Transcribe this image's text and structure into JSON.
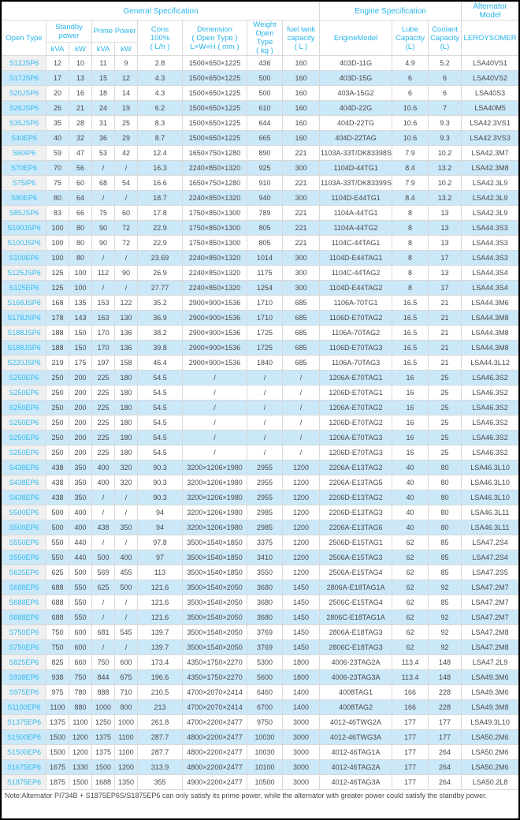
{
  "colors": {
    "accent_header": "#29b4ea",
    "model_link": "#2fb9ef",
    "row_stripe": "#cbe8f9",
    "first_column_bg": "#f0f0f0",
    "grid_border": "#d9d9d9",
    "body_text": "#4a4a4a"
  },
  "table": {
    "header_groups": {
      "general": "General Specification",
      "engine": "Engine Specification",
      "alternator": "Alternator Model"
    },
    "columns_header": {
      "open_type": "Open Type",
      "standby_power": "Standby\npower",
      "prime_power": "Prime Power",
      "kva": "kVA",
      "kw": "kW",
      "cons": "Cons\n100%\n( L/h )",
      "dimension": "Dimension\n( Open Type )\nL×W×H ( mm )",
      "weight": "Weight\nOpen Type\n( kg )",
      "fuel_tank": "fuel tank\ncapacity\n( L )",
      "engine_model": "EngineModel",
      "lube_capacity": "Lube\nCapacity\n(L)",
      "coolant_capacity": "Coolant\nCapacity\n(L)",
      "leroysomer": "LEROYSOMER"
    },
    "column_keys": [
      "model",
      "standby-kva",
      "standby-kw",
      "prime-kva",
      "prime-kw",
      "cons",
      "dimension",
      "weight",
      "fuel-tank",
      "engine-model",
      "lube-capacity",
      "coolant-capacity",
      "alternator"
    ],
    "rows": [
      [
        "S12JSP6",
        "12",
        "10",
        "11",
        "9",
        "2.8",
        "1500×650×1225",
        "436",
        "160",
        "403D-11G",
        "4.9",
        "5.2",
        "LSA40VS1"
      ],
      [
        "S17JSP6",
        "17",
        "13",
        "15",
        "12",
        "4.3",
        "1500×650×1225",
        "500",
        "160",
        "403D-15G",
        "6",
        "6",
        "LSA40VS2"
      ],
      [
        "S20JSP6",
        "20",
        "16",
        "18",
        "14",
        "4.3",
        "1500×650×1225",
        "500",
        "160",
        "403A-15G2",
        "6",
        "6",
        "LSA40S3"
      ],
      [
        "S26JSP6",
        "26",
        "21",
        "24",
        "19",
        "6.2",
        "1500×650×1225",
        "610",
        "160",
        "404D-22G",
        "10.6",
        "7",
        "LSA40M5"
      ],
      [
        "S35JSP6",
        "35",
        "28",
        "31",
        "25",
        "8.3",
        "1500×650×1225",
        "644",
        "160",
        "404D-22TG",
        "10.6",
        "9.3",
        "LSA42.3VS1"
      ],
      [
        "S40EP6",
        "40",
        "32",
        "36",
        "29",
        "8.7",
        "1500×650×1225",
        "665",
        "160",
        "404D-22TAG",
        "10.6",
        "9.3",
        "LSA42.3VS3"
      ],
      [
        "S60IP6",
        "59",
        "47",
        "53",
        "42",
        "12.4",
        "1650×750×1280",
        "890",
        "221",
        "1103A-33T/DK83398S",
        "7.9",
        "10.2",
        "LSA42.3M7"
      ],
      [
        "S70EP6",
        "70",
        "56",
        "/",
        "/",
        "16.3",
        "2240×850×1320",
        "925",
        "300",
        "1104D-44TG1",
        "8.4",
        "13.2",
        "LSA42.3M8"
      ],
      [
        "S75IP6",
        "75",
        "60",
        "68",
        "54",
        "16.6",
        "1650×750×1280",
        "910",
        "221",
        "1103A-33T/DK83399S",
        "7.9",
        "10.2",
        "LSA42.3L9"
      ],
      [
        "S80EP6",
        "80",
        "64",
        "/",
        "/",
        "18.7",
        "2240×850×1320",
        "940",
        "300",
        "1104D-E44TG1",
        "8.4",
        "13.2",
        "LSA42.3L9"
      ],
      [
        "S85JSP6",
        "83",
        "66",
        "75",
        "60",
        "17.8",
        "1750×850×1300",
        "789",
        "221",
        "1104A-44TG1",
        "8",
        "13",
        "LSA42.3L9"
      ],
      [
        "S100JSP6",
        "100",
        "80",
        "90",
        "72",
        "22.9",
        "1750×850×1300",
        "805",
        "221",
        "1104A-44TG2",
        "8",
        "13",
        "LSA44.3S3"
      ],
      [
        "S100JSP6",
        "100",
        "80",
        "90",
        "72",
        "22.9",
        "1750×850×1300",
        "805",
        "221",
        "1104C-44TAG1",
        "8",
        "13",
        "LSA44.3S3"
      ],
      [
        "S100EP6",
        "100",
        "80",
        "/",
        "/",
        "23.69",
        "2240×850×1320",
        "1014",
        "300",
        "1104D-E44TAG1",
        "8",
        "17",
        "LSA44.3S3"
      ],
      [
        "S125JSP6",
        "125",
        "100",
        "112",
        "90",
        "26.9",
        "2240×850×1320",
        "1175",
        "300",
        "1104C-44TAG2",
        "8",
        "13",
        "LSA44.3S4"
      ],
      [
        "S125EP6",
        "125",
        "100",
        "/",
        "/",
        "27.77",
        "2240×850×1320",
        "1254",
        "300",
        "1104D-E44TAG2",
        "8",
        "17",
        "LSA44.3S4"
      ],
      [
        "S168JSP6",
        "168",
        "135",
        "153",
        "122",
        "35.2",
        "2900×900×1536",
        "1710",
        "685",
        "1106A-70TG1",
        "16.5",
        "21",
        "LSA44.3M6"
      ],
      [
        "S178JSP6",
        "178",
        "143",
        "163",
        "130",
        "36.9",
        "2900×900×1536",
        "1710",
        "685",
        "1106D-E70TAG2",
        "16.5",
        "21",
        "LSA44.3M8"
      ],
      [
        "S188JSP6",
        "188",
        "150",
        "170",
        "136",
        "38.2",
        "2900×900×1536",
        "1725",
        "685",
        "1106A-70TAG2",
        "16.5",
        "21",
        "LSA44.3M8"
      ],
      [
        "S188JSP6",
        "188",
        "150",
        "170",
        "136",
        "39.8",
        "2900×900×1536",
        "1725",
        "685",
        "1106D-E70TAG3",
        "16.5",
        "21",
        "LSA44.3M8"
      ],
      [
        "S220JSP6",
        "219",
        "175",
        "197",
        "158",
        "46.4",
        "2900×900×1536",
        "1840",
        "685",
        "1106A-70TAG3",
        "16.5",
        "21",
        "LSA44.3L12"
      ],
      [
        "S250EP6",
        "250",
        "200",
        "225",
        "180",
        "54.5",
        "/",
        "/",
        "/",
        "1206A-E70TAG1",
        "16",
        "25",
        "LSA46.3S2"
      ],
      [
        "S250EP6",
        "250",
        "200",
        "225",
        "180",
        "54.5",
        "/",
        "/",
        "/",
        "1206D-E70TAG1",
        "16",
        "25",
        "LSA46.3S2"
      ],
      [
        "S250EP6",
        "250",
        "200",
        "225",
        "180",
        "54.5",
        "/",
        "/",
        "/",
        "1206A-E70TAG2",
        "16",
        "25",
        "LSA46.3S2"
      ],
      [
        "S250EP6",
        "250",
        "200",
        "225",
        "180",
        "54.5",
        "/",
        "/",
        "/",
        "1206D-E70TAG2",
        "16",
        "25",
        "LSA46.3S2"
      ],
      [
        "S250EP6",
        "250",
        "200",
        "225",
        "180",
        "54.5",
        "/",
        "/",
        "/",
        "1206A-E70TAG3",
        "16",
        "25",
        "LSA46.3S2"
      ],
      [
        "S250EP6",
        "250",
        "200",
        "225",
        "180",
        "54.5",
        "/",
        "/",
        "/",
        "1206D-E70TAG3",
        "16",
        "25",
        "LSA46.3S2"
      ],
      [
        "S438EP6",
        "438",
        "350",
        "400",
        "320",
        "90.3",
        "3200×1206×1980",
        "2955",
        "1200",
        "2206A-E13TAG2",
        "40",
        "80",
        "LSA46.3L10"
      ],
      [
        "S438EP6",
        "438",
        "350",
        "400",
        "320",
        "90.3",
        "3200×1206×1980",
        "2955",
        "1200",
        "2206A-E13TAG5",
        "40",
        "80",
        "LSA46.3L10"
      ],
      [
        "S438EP6",
        "438",
        "350",
        "/",
        "/",
        "90.3",
        "3200×1206×1980",
        "2955",
        "1200",
        "2206D-E13TAG2",
        "40",
        "80",
        "LSA46.3L10"
      ],
      [
        "S500EP6",
        "500",
        "400",
        "/",
        "/",
        "94",
        "3200×1206×1980",
        "2985",
        "1200",
        "2206D-E13TAG3",
        "40",
        "80",
        "LSA46.3L11"
      ],
      [
        "S500EP6",
        "500",
        "400",
        "438",
        "350",
        "94",
        "3200×1206×1980",
        "2985",
        "1200",
        "2206A-E13TAG6",
        "40",
        "80",
        "LSA46.3L11"
      ],
      [
        "S550EP6",
        "550",
        "440",
        "/",
        "/",
        "97.8",
        "3500×1540×1850",
        "3375",
        "1200",
        "2506D-E15TAG1",
        "62",
        "85",
        "LSA47.2S4"
      ],
      [
        "S550EP6",
        "550",
        "440",
        "500",
        "400",
        "97",
        "3500×1540×1850",
        "3410",
        "1200",
        "2506A-E15TAG3",
        "62",
        "85",
        "LSA47.2S4"
      ],
      [
        "S625EP6",
        "625",
        "500",
        "569",
        "455",
        "113",
        "3500×1540×1850",
        "3550",
        "1200",
        "2506A-E15TAG4",
        "62",
        "85",
        "LSA47.2S5"
      ],
      [
        "S688EP6",
        "688",
        "550",
        "625",
        "500",
        "121.6",
        "3500×1540×2050",
        "3680",
        "1450",
        "2806A-E18TAG1A",
        "62",
        "92",
        "LSA47.2M7"
      ],
      [
        "S688EP6",
        "688",
        "550",
        "/",
        "/",
        "121.6",
        "3500×1540×2050",
        "3680",
        "1450",
        "2506C-E15TAG4",
        "62",
        "85",
        "LSA47.2M7"
      ],
      [
        "S688EP6",
        "688",
        "550",
        "/",
        "/",
        "121.6",
        "3500×1540×2050",
        "3680",
        "1450",
        "2806C-E18TAG1A",
        "62",
        "92",
        "LSA47.2M7"
      ],
      [
        "S750EP6",
        "750",
        "600",
        "681",
        "545",
        "139.7",
        "3500×1540×2050",
        "3769",
        "1450",
        "2806A-E18TAG3",
        "62",
        "92",
        "LSA47.2M8"
      ],
      [
        "S750EP6",
        "750",
        "600",
        "/",
        "/",
        "139.7",
        "3500×1540×2050",
        "3769",
        "1450",
        "2806C-E18TAG3",
        "62",
        "92",
        "LSA47.2M8"
      ],
      [
        "S825EP6",
        "825",
        "660",
        "750",
        "600",
        "173.4",
        "4350×1750×2270",
        "5300",
        "1800",
        "4006-23TAG2A",
        "113.4",
        "148",
        "LSA47.2L9"
      ],
      [
        "S938EP6",
        "938",
        "750",
        "844",
        "675",
        "196.6",
        "4350×1750×2270",
        "5600",
        "1800",
        "4006-23TAG3A",
        "113.4",
        "148",
        "LSA49.3M6"
      ],
      [
        "S975EP6",
        "975",
        "780",
        "888",
        "710",
        "210.5",
        "4700×2070×2414",
        "6460",
        "1400",
        "4008TAG1",
        "166",
        "228",
        "LSA49.3M6"
      ],
      [
        "S1100EP6",
        "1100",
        "880",
        "1000",
        "800",
        "213",
        "4700×2070×2414",
        "6700",
        "1400",
        "4008TAG2",
        "166",
        "228",
        "LSA49.3M8"
      ],
      [
        "S1375EP6",
        "1375",
        "1100",
        "1250",
        "1000",
        "261.8",
        "4700×2200×2477",
        "9750",
        "3000",
        "4012-46TWG2A",
        "177",
        "177",
        "LSA49.3L10"
      ],
      [
        "S1500EP6",
        "1500",
        "1200",
        "1375",
        "1100",
        "287.7",
        "4800×2200×2477",
        "10030",
        "3000",
        "4012-46TWG3A",
        "177",
        "177",
        "LSA50.2M6"
      ],
      [
        "S1500EP6",
        "1500",
        "1200",
        "1375",
        "1100",
        "287.7",
        "4800×2200×2477",
        "10030",
        "3000",
        "4012-46TAG1A",
        "177",
        "264",
        "LSA50.2M6"
      ],
      [
        "S1675EP6",
        "1675",
        "1330",
        "1500",
        "1200",
        "313.9",
        "4800×2200×2477",
        "10100",
        "3000",
        "4012-46TAG2A",
        "177",
        "264",
        "LSA50.2M6"
      ],
      [
        "S1875EP6",
        "1875",
        "1500",
        "1688",
        "1350",
        "355",
        "4900×2200×2477",
        "10500",
        "3000",
        "4012-46TAG3A",
        "177",
        "264",
        "LSA50.2L8"
      ]
    ],
    "note": "Note:Alternator PI734B + S1875EP6S/S1875EP6 can only satisfy its prime power, while the alternator with greater power could satisfy the standby power."
  }
}
